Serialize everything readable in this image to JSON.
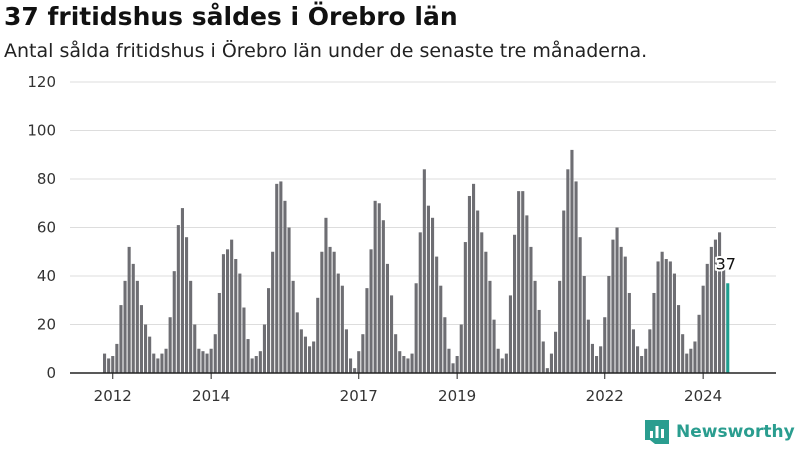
{
  "title": "37 fritidshus såldes i Örebro län",
  "subtitle": "Antal sålda fritidshus i Örebro län under de senaste tre månaderna.",
  "brand": {
    "name": "Newsworthy"
  },
  "colors": {
    "bar": "#6e6e73",
    "highlight": "#1f9e8f",
    "grid": "#dddddd",
    "axis": "#222222",
    "text": "#333333"
  },
  "chart_data": {
    "type": "bar",
    "title": "37 fritidshus såldes i Örebro län",
    "subtitle": "Antal sålda fritidshus i Örebro län under de senaste tre månaderna.",
    "xlabel": "",
    "ylabel": "",
    "ylim": [
      0,
      120
    ],
    "yticks": [
      0,
      20,
      40,
      60,
      80,
      100,
      120
    ],
    "grid": true,
    "x_start": "2011-12",
    "x_tick_labels": [
      "2012",
      "2014",
      "2017",
      "2019",
      "2022",
      "2024"
    ],
    "x_tick_label_months": [
      "2012-02",
      "2014-02",
      "2017-02",
      "2019-02",
      "2022-02",
      "2024-02"
    ],
    "highlight_label": "37",
    "series": [
      {
        "values": [
          8,
          6,
          7,
          12,
          28,
          38,
          52,
          45,
          38,
          28,
          20,
          15,
          8,
          6,
          8,
          10,
          23,
          42,
          61,
          68,
          56,
          38,
          20,
          10,
          9,
          8,
          10,
          16,
          33,
          49,
          51,
          55,
          47,
          41,
          27,
          14,
          6,
          7,
          9,
          20,
          35,
          50,
          78,
          79,
          71,
          60,
          38,
          25,
          18,
          15,
          11,
          13,
          31,
          50,
          64,
          52,
          50,
          41,
          36,
          18,
          6,
          2,
          9,
          16,
          35,
          51,
          71,
          70,
          63,
          45,
          32,
          16,
          9,
          7,
          6,
          8,
          37,
          58,
          84,
          69,
          64,
          48,
          36,
          23,
          10,
          4,
          7,
          20,
          54,
          73,
          78,
          67,
          58,
          50,
          38,
          22,
          10,
          6,
          8,
          32,
          57,
          75,
          75,
          65,
          52,
          38,
          26,
          13,
          2,
          8,
          17,
          38,
          67,
          84,
          92,
          79,
          56,
          40,
          22,
          12,
          7,
          11,
          23,
          40,
          55,
          60,
          52,
          48,
          33,
          18,
          11,
          7,
          10,
          18,
          33,
          46,
          50,
          47,
          46,
          41,
          28,
          16,
          8,
          10,
          13,
          24,
          36,
          45,
          52,
          55,
          58,
          45,
          37
        ]
      }
    ]
  }
}
